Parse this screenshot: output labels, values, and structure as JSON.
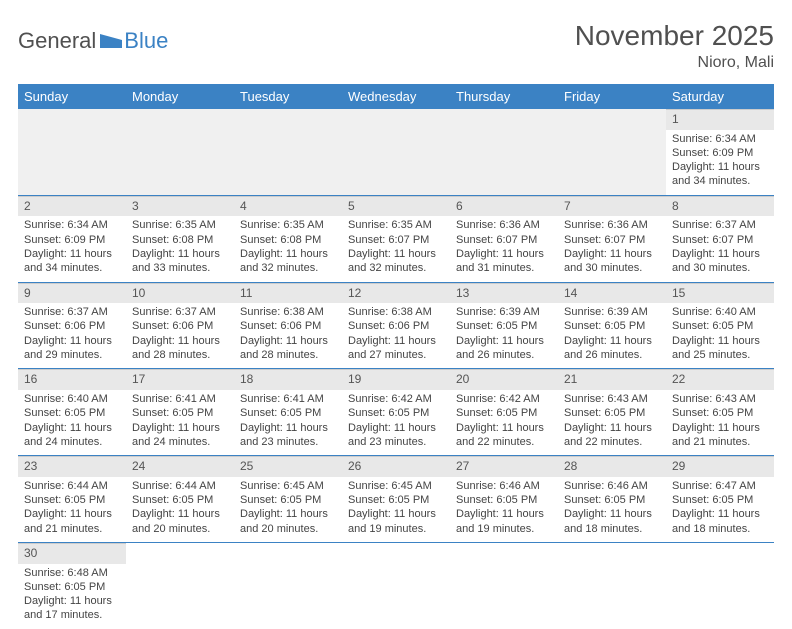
{
  "logo": {
    "text1": "General",
    "text2": "Blue"
  },
  "title": "November 2025",
  "location": "Nioro, Mali",
  "colors": {
    "header_bg": "#3b82c4",
    "header_text": "#ffffff",
    "daynum_bg": "#e8e8e8",
    "empty_bg": "#f0f0f0",
    "border": "#3b82c4",
    "text": "#444444",
    "logo_gray": "#505050",
    "logo_blue": "#3b82c4"
  },
  "weekdays": [
    "Sunday",
    "Monday",
    "Tuesday",
    "Wednesday",
    "Thursday",
    "Friday",
    "Saturday"
  ],
  "grid": [
    [
      null,
      null,
      null,
      null,
      null,
      null,
      {
        "n": "1",
        "sr": "Sunrise: 6:34 AM",
        "ss": "Sunset: 6:09 PM",
        "dl": "Daylight: 11 hours and 34 minutes."
      }
    ],
    [
      {
        "n": "2",
        "sr": "Sunrise: 6:34 AM",
        "ss": "Sunset: 6:09 PM",
        "dl": "Daylight: 11 hours and 34 minutes."
      },
      {
        "n": "3",
        "sr": "Sunrise: 6:35 AM",
        "ss": "Sunset: 6:08 PM",
        "dl": "Daylight: 11 hours and 33 minutes."
      },
      {
        "n": "4",
        "sr": "Sunrise: 6:35 AM",
        "ss": "Sunset: 6:08 PM",
        "dl": "Daylight: 11 hours and 32 minutes."
      },
      {
        "n": "5",
        "sr": "Sunrise: 6:35 AM",
        "ss": "Sunset: 6:07 PM",
        "dl": "Daylight: 11 hours and 32 minutes."
      },
      {
        "n": "6",
        "sr": "Sunrise: 6:36 AM",
        "ss": "Sunset: 6:07 PM",
        "dl": "Daylight: 11 hours and 31 minutes."
      },
      {
        "n": "7",
        "sr": "Sunrise: 6:36 AM",
        "ss": "Sunset: 6:07 PM",
        "dl": "Daylight: 11 hours and 30 minutes."
      },
      {
        "n": "8",
        "sr": "Sunrise: 6:37 AM",
        "ss": "Sunset: 6:07 PM",
        "dl": "Daylight: 11 hours and 30 minutes."
      }
    ],
    [
      {
        "n": "9",
        "sr": "Sunrise: 6:37 AM",
        "ss": "Sunset: 6:06 PM",
        "dl": "Daylight: 11 hours and 29 minutes."
      },
      {
        "n": "10",
        "sr": "Sunrise: 6:37 AM",
        "ss": "Sunset: 6:06 PM",
        "dl": "Daylight: 11 hours and 28 minutes."
      },
      {
        "n": "11",
        "sr": "Sunrise: 6:38 AM",
        "ss": "Sunset: 6:06 PM",
        "dl": "Daylight: 11 hours and 28 minutes."
      },
      {
        "n": "12",
        "sr": "Sunrise: 6:38 AM",
        "ss": "Sunset: 6:06 PM",
        "dl": "Daylight: 11 hours and 27 minutes."
      },
      {
        "n": "13",
        "sr": "Sunrise: 6:39 AM",
        "ss": "Sunset: 6:05 PM",
        "dl": "Daylight: 11 hours and 26 minutes."
      },
      {
        "n": "14",
        "sr": "Sunrise: 6:39 AM",
        "ss": "Sunset: 6:05 PM",
        "dl": "Daylight: 11 hours and 26 minutes."
      },
      {
        "n": "15",
        "sr": "Sunrise: 6:40 AM",
        "ss": "Sunset: 6:05 PM",
        "dl": "Daylight: 11 hours and 25 minutes."
      }
    ],
    [
      {
        "n": "16",
        "sr": "Sunrise: 6:40 AM",
        "ss": "Sunset: 6:05 PM",
        "dl": "Daylight: 11 hours and 24 minutes."
      },
      {
        "n": "17",
        "sr": "Sunrise: 6:41 AM",
        "ss": "Sunset: 6:05 PM",
        "dl": "Daylight: 11 hours and 24 minutes."
      },
      {
        "n": "18",
        "sr": "Sunrise: 6:41 AM",
        "ss": "Sunset: 6:05 PM",
        "dl": "Daylight: 11 hours and 23 minutes."
      },
      {
        "n": "19",
        "sr": "Sunrise: 6:42 AM",
        "ss": "Sunset: 6:05 PM",
        "dl": "Daylight: 11 hours and 23 minutes."
      },
      {
        "n": "20",
        "sr": "Sunrise: 6:42 AM",
        "ss": "Sunset: 6:05 PM",
        "dl": "Daylight: 11 hours and 22 minutes."
      },
      {
        "n": "21",
        "sr": "Sunrise: 6:43 AM",
        "ss": "Sunset: 6:05 PM",
        "dl": "Daylight: 11 hours and 22 minutes."
      },
      {
        "n": "22",
        "sr": "Sunrise: 6:43 AM",
        "ss": "Sunset: 6:05 PM",
        "dl": "Daylight: 11 hours and 21 minutes."
      }
    ],
    [
      {
        "n": "23",
        "sr": "Sunrise: 6:44 AM",
        "ss": "Sunset: 6:05 PM",
        "dl": "Daylight: 11 hours and 21 minutes."
      },
      {
        "n": "24",
        "sr": "Sunrise: 6:44 AM",
        "ss": "Sunset: 6:05 PM",
        "dl": "Daylight: 11 hours and 20 minutes."
      },
      {
        "n": "25",
        "sr": "Sunrise: 6:45 AM",
        "ss": "Sunset: 6:05 PM",
        "dl": "Daylight: 11 hours and 20 minutes."
      },
      {
        "n": "26",
        "sr": "Sunrise: 6:45 AM",
        "ss": "Sunset: 6:05 PM",
        "dl": "Daylight: 11 hours and 19 minutes."
      },
      {
        "n": "27",
        "sr": "Sunrise: 6:46 AM",
        "ss": "Sunset: 6:05 PM",
        "dl": "Daylight: 11 hours and 19 minutes."
      },
      {
        "n": "28",
        "sr": "Sunrise: 6:46 AM",
        "ss": "Sunset: 6:05 PM",
        "dl": "Daylight: 11 hours and 18 minutes."
      },
      {
        "n": "29",
        "sr": "Sunrise: 6:47 AM",
        "ss": "Sunset: 6:05 PM",
        "dl": "Daylight: 11 hours and 18 minutes."
      }
    ],
    [
      {
        "n": "30",
        "sr": "Sunrise: 6:48 AM",
        "ss": "Sunset: 6:05 PM",
        "dl": "Daylight: 11 hours and 17 minutes."
      },
      null,
      null,
      null,
      null,
      null,
      null
    ]
  ]
}
